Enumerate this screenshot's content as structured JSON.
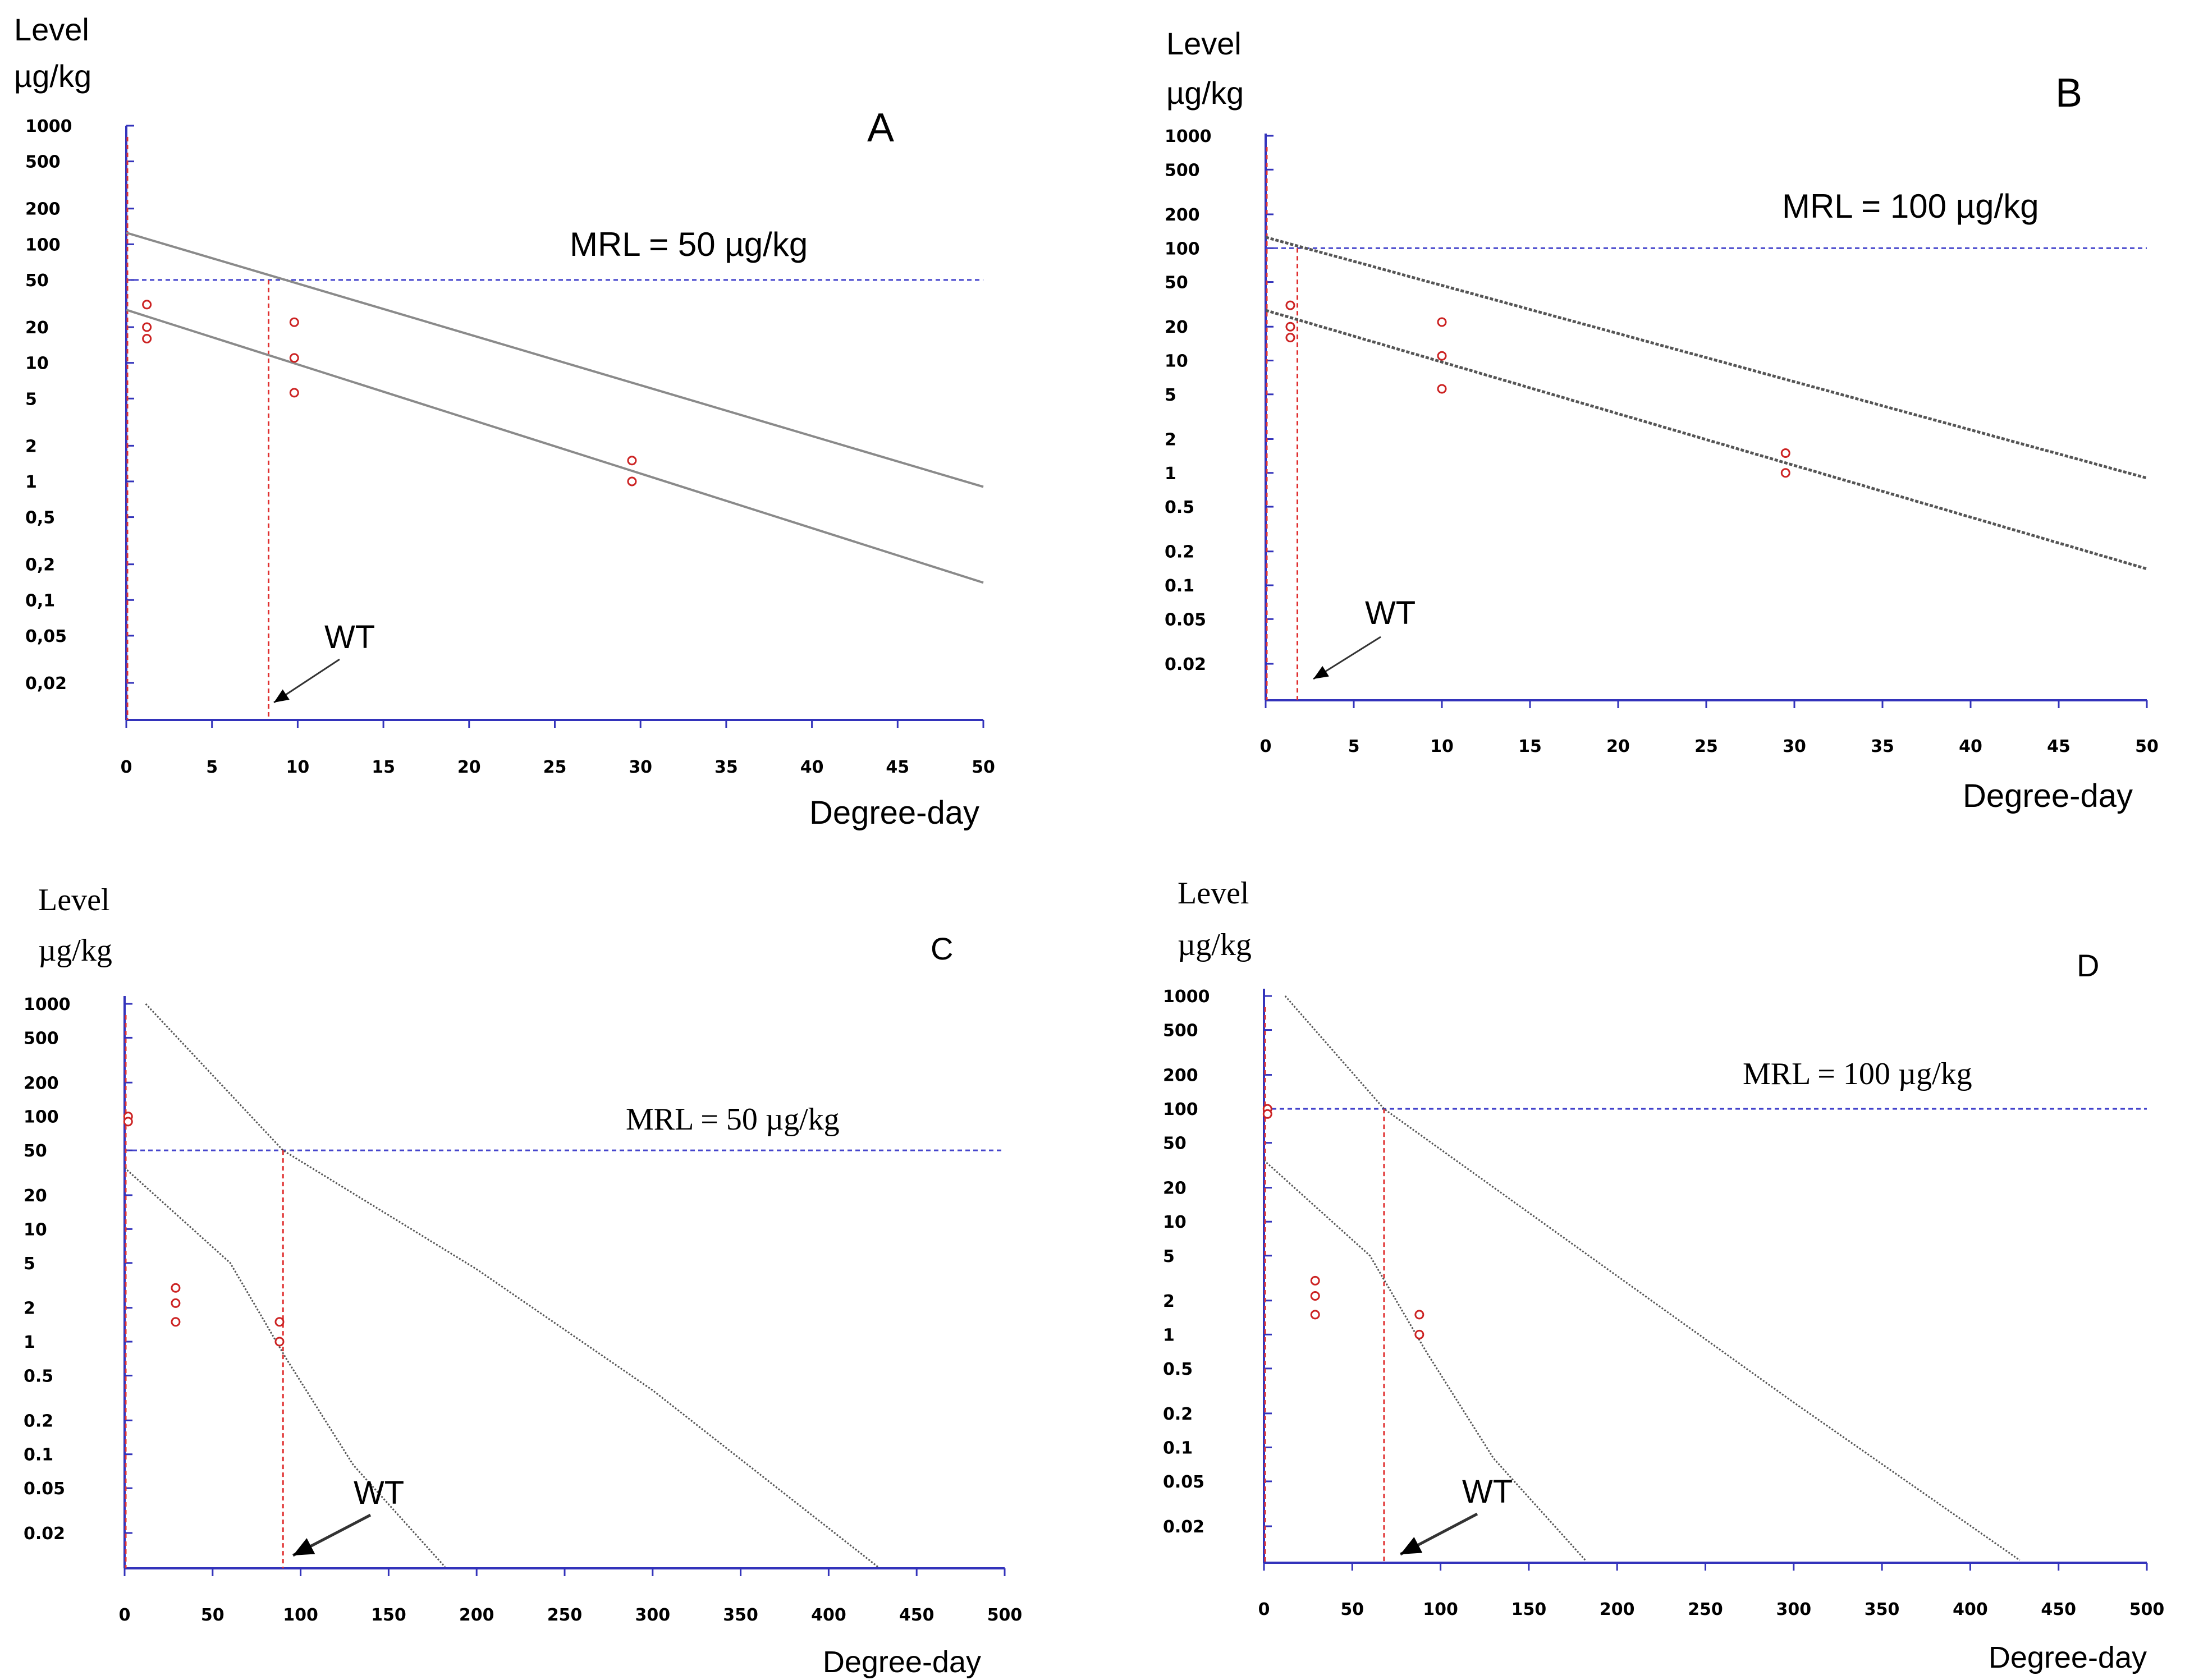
{
  "colors": {
    "axis": "#3333bb",
    "mrl_line": "#4444cc",
    "wt_line": "#e03030",
    "points": "#cc2222",
    "regression": "#8a8a8a",
    "tolerance": "#555555",
    "text": "#000000"
  },
  "chart_data": [
    {
      "id": "A",
      "type": "scatter",
      "panel_label": "A",
      "ylabel_line1": "Level",
      "ylabel_line2": "µg/kg",
      "xlabel": "Degree-day",
      "y_scale": "log",
      "ylim": [
        0.01,
        1000
      ],
      "xlim": [
        0,
        50
      ],
      "y_tick_values": [
        1000,
        500,
        200,
        100,
        50,
        20,
        10,
        5,
        2,
        1,
        0.5,
        0.2,
        0.1,
        0.05,
        0.02
      ],
      "y_tick_labels": [
        "1000",
        "500",
        "200",
        "100",
        "50",
        "20",
        "10",
        "5",
        "2",
        "1",
        "0,5",
        "0,2",
        "0,1",
        "0,05",
        "0,02"
      ],
      "x_tick_values": [
        0,
        5,
        10,
        15,
        20,
        25,
        30,
        35,
        40,
        45,
        50
      ],
      "x_tick_labels": [
        "0",
        "5",
        "10",
        "15",
        "20",
        "25",
        "30",
        "35",
        "40",
        "45",
        "50"
      ],
      "mrl_value": 50,
      "mrl_label": "MRL = 50 µg/kg",
      "wt_value": 8.3,
      "wt_label": "WT",
      "points": [
        [
          1.2,
          31
        ],
        [
          1.2,
          20
        ],
        [
          1.2,
          16
        ],
        [
          9.8,
          22
        ],
        [
          9.8,
          11
        ],
        [
          9.8,
          5.6
        ],
        [
          29.5,
          1.5
        ],
        [
          29.5,
          1.0
        ]
      ],
      "lines": [
        {
          "name": "tolerance-limit",
          "x": [
            0,
            50
          ],
          "y": [
            125,
            0.9
          ]
        },
        {
          "name": "regression",
          "x": [
            0,
            50
          ],
          "y": [
            28,
            0.14
          ]
        }
      ]
    },
    {
      "id": "B",
      "type": "scatter",
      "panel_label": "B",
      "ylabel_line1": "Level",
      "ylabel_line2": "µg/kg",
      "xlabel": "Degree-day",
      "y_scale": "log",
      "ylim": [
        0.01,
        1000
      ],
      "xlim": [
        0,
        50
      ],
      "y_tick_values": [
        1000,
        500,
        200,
        100,
        50,
        20,
        10,
        5,
        2,
        1,
        0.5,
        0.2,
        0.1,
        0.05,
        0.02
      ],
      "y_tick_labels": [
        "1000",
        "500",
        "200",
        "100",
        "50",
        "20",
        "10",
        "5",
        "2",
        "1",
        "0.5",
        "0.2",
        "0.1",
        "0.05",
        "0.02"
      ],
      "x_tick_values": [
        0,
        5,
        10,
        15,
        20,
        25,
        30,
        35,
        40,
        45,
        50
      ],
      "x_tick_labels": [
        "0",
        "5",
        "10",
        "15",
        "20",
        "25",
        "30",
        "35",
        "40",
        "45",
        "50"
      ],
      "mrl_value": 100,
      "mrl_label": "MRL = 100 µg/kg",
      "wt_value": 1.8,
      "wt_label": "WT",
      "points": [
        [
          1.4,
          31
        ],
        [
          1.4,
          20
        ],
        [
          1.4,
          16
        ],
        [
          10,
          22
        ],
        [
          10,
          11
        ],
        [
          10,
          5.6
        ],
        [
          29.5,
          1.5
        ],
        [
          29.5,
          1.0
        ]
      ],
      "lines": [
        {
          "name": "tolerance-limit",
          "x": [
            0,
            50
          ],
          "y": [
            125,
            0.9
          ]
        },
        {
          "name": "regression",
          "x": [
            0,
            50
          ],
          "y": [
            28,
            0.14
          ]
        }
      ]
    },
    {
      "id": "C",
      "type": "scatter",
      "panel_label": "C",
      "ylabel_line1": "Level",
      "ylabel_line2": "µg/kg",
      "xlabel": "Degree-day",
      "y_scale": "log",
      "ylim": [
        0.01,
        1000
      ],
      "xlim": [
        0,
        500
      ],
      "y_tick_values": [
        1000,
        500,
        200,
        100,
        50,
        20,
        10,
        5,
        2,
        1,
        0.5,
        0.2,
        0.1,
        0.05,
        0.02
      ],
      "y_tick_labels": [
        "1000",
        "500",
        "200",
        "100",
        "50",
        "20",
        "10",
        "5",
        "2",
        "1",
        "0.5",
        "0.2",
        "0.1",
        "0.05",
        "0.02"
      ],
      "x_tick_values": [
        0,
        50,
        100,
        150,
        200,
        250,
        300,
        350,
        400,
        450,
        500
      ],
      "x_tick_labels": [
        "0",
        "50",
        "100",
        "150",
        "200",
        "250",
        "300",
        "350",
        "400",
        "450",
        "500"
      ],
      "mrl_value": 50,
      "mrl_label": "MRL = 50 µg/kg",
      "wt_value": 90,
      "wt_label": "WT",
      "points": [
        [
          2,
          100
        ],
        [
          2,
          90
        ],
        [
          29,
          3.0
        ],
        [
          29,
          2.2
        ],
        [
          29,
          1.5
        ],
        [
          88,
          1.5
        ],
        [
          88,
          1.0
        ]
      ],
      "lines": [
        {
          "name": "tolerance-limit",
          "x": [
            12,
            90,
            200,
            300,
            428
          ],
          "y": [
            1000,
            50,
            4.4,
            0.37,
            0.01
          ]
        },
        {
          "name": "regression",
          "x": [
            0,
            60,
            92,
            130,
            182
          ],
          "y": [
            35,
            5.0,
            0.7,
            0.08,
            0.01
          ]
        }
      ]
    },
    {
      "id": "D",
      "type": "scatter",
      "panel_label": "D",
      "ylabel_line1": "Level",
      "ylabel_line2": "µg/kg",
      "xlabel": "Degree-day",
      "y_scale": "log",
      "ylim": [
        0.01,
        1000
      ],
      "xlim": [
        0,
        500
      ],
      "y_tick_values": [
        1000,
        500,
        200,
        100,
        50,
        20,
        10,
        5,
        2,
        1,
        0.5,
        0.2,
        0.1,
        0.05,
        0.02
      ],
      "y_tick_labels": [
        "1000",
        "500",
        "200",
        "100",
        "50",
        "20",
        "10",
        "5",
        "2",
        "1",
        "0.5",
        "0.2",
        "0.1",
        "0.05",
        "0.02"
      ],
      "x_tick_values": [
        0,
        50,
        100,
        150,
        200,
        250,
        300,
        350,
        400,
        450,
        500
      ],
      "x_tick_labels": [
        "0",
        "50",
        "100",
        "150",
        "200",
        "250",
        "300",
        "350",
        "400",
        "450",
        "500"
      ],
      "mrl_value": 100,
      "mrl_label": "MRL = 100 µg/kg",
      "wt_value": 68,
      "wt_label": "WT",
      "points": [
        [
          2,
          100
        ],
        [
          2,
          90
        ],
        [
          29,
          3.0
        ],
        [
          29,
          2.2
        ],
        [
          29,
          1.5
        ],
        [
          88,
          1.5
        ],
        [
          88,
          1.0
        ]
      ],
      "lines": [
        {
          "name": "tolerance-limit",
          "x": [
            12,
            68,
            200,
            300,
            428
          ],
          "y": [
            1000,
            100,
            3.3,
            0.25,
            0.01
          ]
        },
        {
          "name": "regression",
          "x": [
            0,
            60,
            92,
            130,
            182
          ],
          "y": [
            35,
            5.0,
            0.7,
            0.08,
            0.01
          ]
        }
      ]
    }
  ]
}
